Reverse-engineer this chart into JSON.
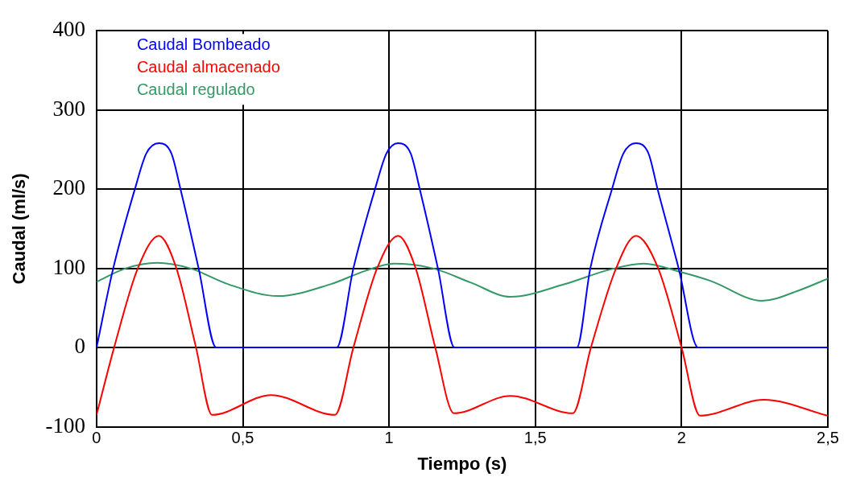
{
  "chart_data": {
    "type": "line",
    "xlabel": "Tiempo (s)",
    "ylabel": "Caudal (ml/s)",
    "xlim": [
      0,
      2.5
    ],
    "xticks": [
      0,
      {
        "value": 0.5,
        "label": "0,5"
      },
      1,
      {
        "value": 1.5,
        "label": "1,5"
      },
      2,
      {
        "value": 2.5,
        "label": "2,5"
      }
    ],
    "ylim": [
      -100,
      400
    ],
    "yticks": [
      -100,
      0,
      100,
      200,
      300,
      400
    ],
    "grid": true,
    "legend": "top left",
    "marker": "none",
    "line_style": "solid",
    "series": [
      {
        "name": "Caudal Bombeado",
        "color": "#0000ff",
        "x": [
          0,
          0.057,
          0.131,
          0.17,
          0.213,
          0.256,
          0.287,
          0.349,
          0.409,
          0.821,
          0.878,
          0.952,
          0.991,
          1.031,
          1.074,
          1.105,
          1.167,
          1.224,
          1.642,
          1.688,
          1.762,
          1.801,
          1.844,
          1.887,
          1.918,
          1.99,
          2.057,
          2.5
        ],
        "values": [
          0,
          100,
          200,
          245,
          258,
          245,
          200,
          100,
          0,
          0,
          100,
          200,
          245,
          258,
          245,
          200,
          100,
          0,
          0,
          100,
          200,
          245,
          258,
          245,
          200,
          100,
          0,
          0
        ]
      },
      {
        "name": "Caudal almacenado",
        "color": "#ff0000",
        "x": [
          0,
          0.06,
          0.141,
          0.213,
          0.273,
          0.34,
          0.395,
          0.597,
          0.815,
          0.878,
          0.959,
          1.031,
          1.091,
          1.158,
          1.222,
          1.415,
          1.628,
          1.69,
          1.776,
          1.844,
          1.92,
          2.0,
          2.063,
          2.281,
          2.5
        ],
        "values": [
          -85,
          0,
          100,
          141,
          100,
          0,
          -85,
          -60,
          -85,
          0,
          100,
          141,
          100,
          0,
          -83,
          -61,
          -83,
          0,
          100,
          141,
          100,
          0,
          -86,
          -66,
          -86
        ]
      },
      {
        "name": "Caudal regulado",
        "color": "#339966",
        "x": [
          0,
          0.1,
          0.207,
          0.32,
          0.45,
          0.62,
          0.8,
          0.92,
          1.017,
          1.15,
          1.28,
          1.415,
          1.6,
          1.75,
          1.87,
          2.0,
          2.1,
          2.275,
          2.4,
          2.5
        ],
        "values": [
          83,
          100,
          107,
          100,
          80,
          65,
          80,
          97,
          106,
          100,
          82,
          64,
          80,
          98,
          106,
          95,
          84,
          59,
          72,
          87
        ]
      }
    ]
  }
}
